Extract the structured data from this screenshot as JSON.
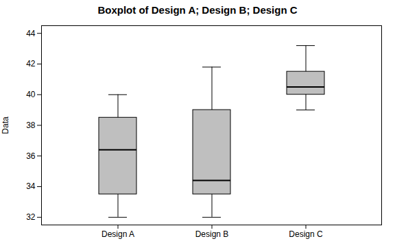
{
  "chart_data": {
    "type": "box",
    "title": "Boxplot of Design A; Design B; Design C",
    "ylabel": "Data",
    "categories": [
      "Design A",
      "Design B",
      "Design C"
    ],
    "stats": [
      {
        "whislo": 32.0,
        "q1": 33.5,
        "med": 36.4,
        "q3": 38.5,
        "whishi": 40.0
      },
      {
        "whislo": 32.0,
        "q1": 33.5,
        "med": 34.4,
        "q3": 39.0,
        "whishi": 41.8
      },
      {
        "whislo": 39.0,
        "q1": 40.0,
        "med": 40.5,
        "q3": 41.5,
        "whishi": 43.2
      }
    ],
    "color": "#bfbfbf",
    "ylim": [
      31.5,
      44.5
    ],
    "yticks": [
      32,
      34,
      36,
      38,
      40,
      42,
      44
    ],
    "grid": false
  }
}
